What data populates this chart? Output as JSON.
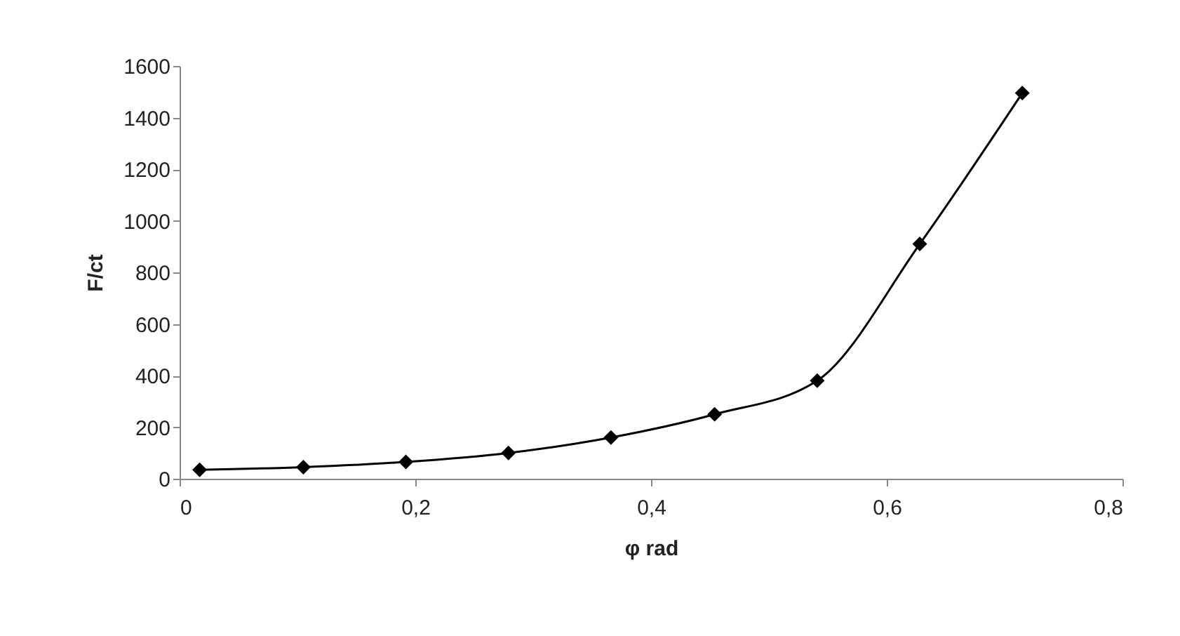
{
  "chart_data": {
    "type": "line",
    "xlabel": "φ rad",
    "ylabel": "F/ct",
    "x": [
      0.017,
      0.105,
      0.192,
      0.279,
      0.366,
      0.454,
      0.541,
      0.628,
      0.715
    ],
    "series": [
      {
        "color": "#000000",
        "values": [
          35,
          45,
          65,
          100,
          160,
          250,
          380,
          910,
          1495
        ]
      }
    ],
    "xlim": [
      0,
      0.8
    ],
    "xticks": [
      0,
      {
        "value": 0.2,
        "label": "0,2"
      },
      {
        "value": 0.4,
        "label": "0,4"
      },
      {
        "value": 0.6,
        "label": "0,6"
      },
      {
        "value": 0.8,
        "label": "0,8"
      }
    ],
    "ylim": [
      0,
      1600
    ],
    "yticks": [
      0,
      200,
      400,
      600,
      800,
      1000,
      1200,
      1400,
      1600
    ],
    "grid": false,
    "marker": "diamond",
    "line_style": "solid"
  }
}
